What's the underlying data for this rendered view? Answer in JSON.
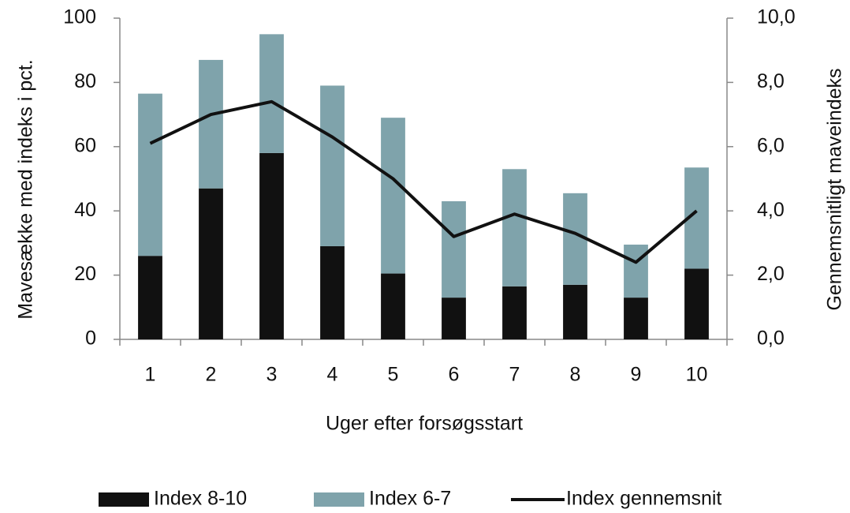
{
  "chart_data": {
    "type": "bar",
    "categories": [
      "1",
      "2",
      "3",
      "4",
      "5",
      "6",
      "7",
      "8",
      "9",
      "10"
    ],
    "x_label": "Uger efter forsøgsstart",
    "y_label": "Mavesække med indeks i pct.",
    "y2_label": "Gennemsnitligt maveindeks",
    "series": [
      {
        "name": "Index 8-10",
        "color": "#111111",
        "values": [
          26,
          47,
          58,
          29,
          20.5,
          13,
          16.5,
          17,
          13,
          22
        ]
      },
      {
        "name": "Index 6-7",
        "color": "#7fa3ab",
        "values": [
          50.5,
          40,
          37,
          50,
          48.5,
          30,
          36.5,
          28.5,
          16.5,
          31.5
        ]
      },
      {
        "name": "Index gennemsnit",
        "color": "#111111",
        "type": "line",
        "axis": "y2",
        "values": [
          6.1,
          7.0,
          7.4,
          6.3,
          5.0,
          3.2,
          3.9,
          3.3,
          2.4,
          4.0
        ]
      }
    ],
    "ylim": [
      0,
      100
    ],
    "yticks": [
      0,
      20,
      40,
      60,
      80,
      100
    ],
    "y2lim": [
      0,
      10
    ],
    "y2ticks": [
      {
        "value": 0,
        "label": "0,0"
      },
      {
        "value": 2,
        "label": "2,0"
      },
      {
        "value": 4,
        "label": "4,0"
      },
      {
        "value": 6,
        "label": "6,0"
      },
      {
        "value": 8,
        "label": "8,0"
      },
      {
        "value": 10,
        "label": "10,0"
      }
    ],
    "legend": "bottom"
  }
}
